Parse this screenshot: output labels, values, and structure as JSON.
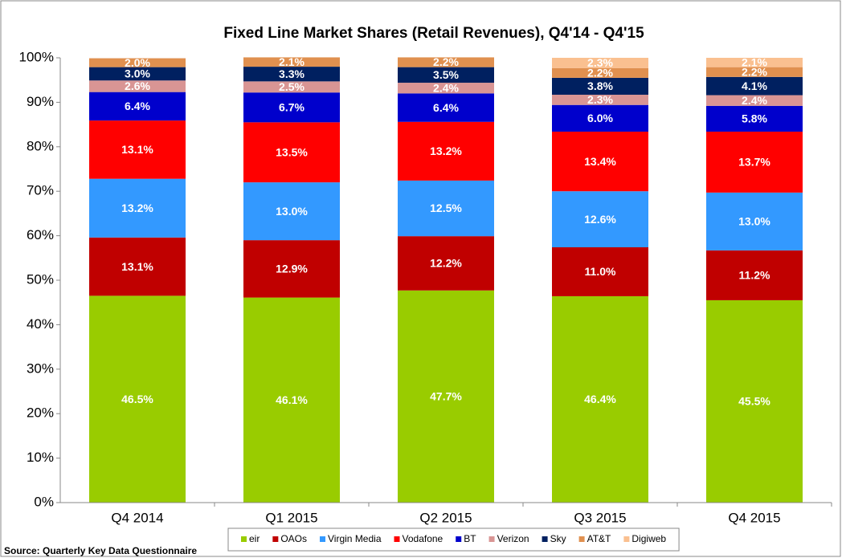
{
  "chart_data": {
    "type": "stacked_bar",
    "title": "Fixed Line Market Shares (Retail Revenues), Q4'14 - Q4'15",
    "source": "Source: Quarterly Key Data Questionnaire",
    "categories": [
      "Q4 2014",
      "Q1 2015",
      "Q2 2015",
      "Q3 2015",
      "Q4 2015"
    ],
    "series": [
      {
        "name": "eir",
        "color": "#99cc00",
        "values": [
          46.5,
          46.1,
          47.7,
          46.4,
          45.5
        ],
        "value_labels": [
          "46.5%",
          "46.1%",
          "47.7%",
          "46.4%",
          "45.5%"
        ]
      },
      {
        "name": "OAOs",
        "color": "#c00000",
        "values": [
          13.1,
          12.9,
          12.2,
          11.0,
          11.2
        ],
        "value_labels": [
          "13.1%",
          "12.9%",
          "12.2%",
          "11.0%",
          "11.2%"
        ]
      },
      {
        "name": "Virgin Media",
        "color": "#3399ff",
        "values": [
          13.2,
          13.0,
          12.5,
          12.6,
          13.0
        ],
        "value_labels": [
          "13.2%",
          "13.0%",
          "12.5%",
          "12.6%",
          "13.0%"
        ]
      },
      {
        "name": "Vodafone",
        "color": "#ff0000",
        "values": [
          13.1,
          13.5,
          13.2,
          13.4,
          13.7
        ],
        "value_labels": [
          "13.1%",
          "13.5%",
          "13.2%",
          "13.4%",
          "13.7%"
        ]
      },
      {
        "name": "BT",
        "color": "#0000cc",
        "values": [
          6.4,
          6.7,
          6.4,
          6.0,
          5.8
        ],
        "value_labels": [
          "6.4%",
          "6.7%",
          "6.4%",
          "6.0%",
          "5.8%"
        ]
      },
      {
        "name": "Verizon",
        "color": "#d99594",
        "values": [
          2.6,
          2.5,
          2.4,
          2.3,
          2.4
        ],
        "value_labels": [
          "2.6%",
          "2.5%",
          "2.4%",
          "2.3%",
          "2.4%"
        ]
      },
      {
        "name": "Sky",
        "color": "#002060",
        "values": [
          3.0,
          3.3,
          3.5,
          3.8,
          4.1
        ],
        "value_labels": [
          "3.0%",
          "3.3%",
          "3.5%",
          "3.8%",
          "4.1%"
        ]
      },
      {
        "name": "AT&T",
        "color": "#e0904f",
        "values": [
          2.0,
          2.1,
          2.2,
          2.2,
          2.2
        ],
        "value_labels": [
          "2.0%",
          "2.1%",
          "2.2%",
          "2.2%",
          "2.2%"
        ]
      },
      {
        "name": "Digiweb",
        "color": "#fac090",
        "values": [
          null,
          null,
          null,
          2.3,
          2.1
        ],
        "value_labels": [
          null,
          null,
          null,
          "2.3%",
          "2.1%"
        ]
      }
    ],
    "ylim": [
      0,
      100
    ],
    "yticks": [
      {
        "value": 0,
        "label": "0%"
      },
      {
        "value": 10,
        "label": "10%"
      },
      {
        "value": 20,
        "label": "20%"
      },
      {
        "value": 30,
        "label": "30%"
      },
      {
        "value": 40,
        "label": "40%"
      },
      {
        "value": 50,
        "label": "50%"
      },
      {
        "value": 60,
        "label": "60%"
      },
      {
        "value": 70,
        "label": "70%"
      },
      {
        "value": 80,
        "label": "80%"
      },
      {
        "value": 90,
        "label": "90%"
      },
      {
        "value": 100,
        "label": "100%"
      }
    ],
    "grid": false,
    "legend": "bottom"
  }
}
